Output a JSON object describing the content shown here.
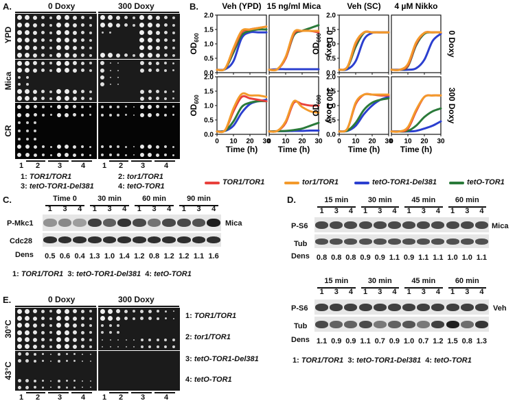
{
  "panelA": {
    "label": "A.",
    "cond0": "0 Doxy",
    "cond300": "300 Doxy",
    "rows": [
      "YPD",
      "Mica",
      "CR"
    ],
    "strain_nums": [
      "1",
      "2",
      "3",
      "4"
    ],
    "legend": [
      {
        "num": "1:",
        "name": "TOR1/TOR1"
      },
      {
        "num": "2:",
        "name": "tor1/TOR1"
      },
      {
        "num": "3:",
        "name": "tetO-TOR1-Del381"
      },
      {
        "num": "4:",
        "name": "tetO-TOR1"
      }
    ]
  },
  "panelB": {
    "label": "B.",
    "titles": [
      "Veh (YPD)",
      "15 ng/ml Mica",
      "Veh (SC)",
      "4 µM Nikko"
    ],
    "row_labels": [
      "0 Doxy",
      "300 Doxy"
    ],
    "ylabel_main": "OD",
    "ylabel_sub": "600",
    "xlabel": "Time (h)",
    "yticks": [
      "0.0",
      "0.5",
      "1.0",
      "1.5",
      "2.0"
    ],
    "xticks": [
      "0",
      "10",
      "20",
      "30"
    ],
    "legend": [
      {
        "name": "TOR1/TOR1",
        "color": "#e8413c"
      },
      {
        "name": "tor1/TOR1",
        "color": "#f39a2b"
      },
      {
        "name": "tetO-TOR1-Del381",
        "color": "#2b3fcf"
      },
      {
        "name": "tetO-TOR1",
        "color": "#2a7a3a"
      }
    ]
  },
  "chart_data": {
    "type": "line",
    "xlabel": "Time (h)",
    "ylabel": "OD600",
    "xlim": [
      0,
      30
    ],
    "ylim": [
      0,
      2.0
    ],
    "panels": [
      {
        "title": "Veh (YPD) / 0 Doxy",
        "series": [
          {
            "name": "TOR1/TOR1",
            "x": [
              0,
              5,
              10,
              15,
              20,
              25,
              30
            ],
            "values": [
              0.1,
              0.15,
              0.8,
              1.4,
              1.5,
              1.55,
              1.6
            ]
          },
          {
            "name": "tor1/TOR1",
            "x": [
              0,
              5,
              10,
              15,
              20,
              25,
              30
            ],
            "values": [
              0.1,
              0.15,
              0.85,
              1.45,
              1.5,
              1.55,
              1.6
            ]
          },
          {
            "name": "tetO-TOR1-Del381",
            "x": [
              0,
              5,
              10,
              15,
              20,
              25,
              30
            ],
            "values": [
              0.1,
              0.12,
              0.4,
              1.2,
              1.4,
              1.4,
              1.4
            ]
          },
          {
            "name": "tetO-TOR1",
            "x": [
              0,
              5,
              10,
              15,
              20,
              25,
              30
            ],
            "values": [
              0.1,
              0.14,
              0.7,
              1.3,
              1.45,
              1.5,
              1.5
            ]
          }
        ]
      },
      {
        "title": "15 ng/ml Mica / 0 Doxy",
        "series": [
          {
            "name": "TOR1/TOR1",
            "x": [
              0,
              5,
              10,
              15,
              20,
              25,
              30
            ],
            "values": [
              0.1,
              0.12,
              0.5,
              1.35,
              1.45,
              1.45,
              1.4
            ]
          },
          {
            "name": "tor1/TOR1",
            "x": [
              0,
              5,
              10,
              15,
              20,
              25,
              30
            ],
            "values": [
              0.1,
              0.12,
              0.55,
              1.4,
              1.45,
              1.45,
              1.45
            ]
          },
          {
            "name": "tetO-TOR1-Del381",
            "x": [
              0,
              5,
              10,
              15,
              20,
              25,
              30
            ],
            "values": [
              0.1,
              0.12,
              0.12,
              0.12,
              0.12,
              0.12,
              0.12
            ]
          },
          {
            "name": "tetO-TOR1",
            "x": [
              0,
              5,
              10,
              15,
              20,
              25,
              30
            ],
            "values": [
              0.1,
              0.12,
              0.5,
              1.3,
              1.45,
              1.55,
              1.65
            ]
          }
        ]
      },
      {
        "title": "Veh (SC) / 0 Doxy",
        "series": [
          {
            "name": "TOR1/TOR1",
            "x": [
              0,
              5,
              10,
              15,
              20,
              25,
              30
            ],
            "values": [
              0.1,
              0.2,
              1.0,
              1.4,
              1.4,
              1.4,
              1.4
            ]
          },
          {
            "name": "tor1/TOR1",
            "x": [
              0,
              5,
              10,
              15,
              20,
              25,
              30
            ],
            "values": [
              0.1,
              0.2,
              1.05,
              1.4,
              1.4,
              1.4,
              1.4
            ]
          },
          {
            "name": "tetO-TOR1-Del381",
            "x": [
              0,
              5,
              10,
              15,
              20,
              25,
              30
            ],
            "values": [
              0.1,
              0.12,
              0.4,
              1.15,
              1.38,
              1.4,
              1.4
            ]
          },
          {
            "name": "tetO-TOR1",
            "x": [
              0,
              5,
              10,
              15,
              20,
              25,
              30
            ],
            "values": [
              0.1,
              0.18,
              0.9,
              1.38,
              1.4,
              1.4,
              1.4
            ]
          }
        ]
      },
      {
        "title": "4 µM Nikko / 0 Doxy",
        "series": [
          {
            "name": "TOR1/TOR1",
            "x": [
              0,
              5,
              10,
              15,
              20,
              25,
              30
            ],
            "values": [
              0.1,
              0.1,
              0.25,
              1.0,
              1.38,
              1.4,
              1.4
            ]
          },
          {
            "name": "tor1/TOR1",
            "x": [
              0,
              5,
              10,
              15,
              20,
              25,
              30
            ],
            "values": [
              0.1,
              0.1,
              0.3,
              1.05,
              1.38,
              1.4,
              1.4
            ]
          },
          {
            "name": "tetO-TOR1-Del381",
            "x": [
              0,
              5,
              10,
              15,
              20,
              25,
              30
            ],
            "values": [
              0.1,
              0.1,
              0.1,
              0.15,
              0.45,
              1.1,
              1.35
            ]
          },
          {
            "name": "tetO-TOR1",
            "x": [
              0,
              5,
              10,
              15,
              20,
              25,
              30
            ],
            "values": [
              0.1,
              0.1,
              0.22,
              0.95,
              1.35,
              1.4,
              1.4
            ]
          }
        ]
      },
      {
        "title": "Veh (YPD) / 300 Doxy",
        "series": [
          {
            "name": "TOR1/TOR1",
            "x": [
              0,
              5,
              10,
              15,
              20,
              25,
              30
            ],
            "values": [
              0.1,
              0.15,
              0.8,
              1.3,
              1.25,
              1.2,
              1.15
            ]
          },
          {
            "name": "tor1/TOR1",
            "x": [
              0,
              5,
              10,
              15,
              20,
              25,
              30
            ],
            "values": [
              0.1,
              0.15,
              0.9,
              1.4,
              1.35,
              1.35,
              1.3
            ]
          },
          {
            "name": "tetO-TOR1-Del381",
            "x": [
              0,
              5,
              10,
              15,
              20,
              25,
              30
            ],
            "values": [
              0.1,
              0.12,
              0.3,
              0.75,
              1.05,
              1.15,
              1.2
            ]
          },
          {
            "name": "tetO-TOR1",
            "x": [
              0,
              5,
              10,
              15,
              20,
              25,
              30
            ],
            "values": [
              0.1,
              0.13,
              0.45,
              0.95,
              1.1,
              1.15,
              1.15
            ]
          }
        ]
      },
      {
        "title": "15 ng/ml Mica / 300 Doxy",
        "series": [
          {
            "name": "TOR1/TOR1",
            "x": [
              0,
              5,
              10,
              15,
              20,
              25,
              30
            ],
            "values": [
              0.1,
              0.12,
              0.4,
              1.1,
              1.05,
              1.0,
              1.0
            ]
          },
          {
            "name": "tor1/TOR1",
            "x": [
              0,
              5,
              10,
              15,
              20,
              25,
              30
            ],
            "values": [
              0.1,
              0.12,
              0.45,
              1.15,
              0.95,
              0.8,
              0.75
            ]
          },
          {
            "name": "tetO-TOR1-Del381",
            "x": [
              0,
              5,
              10,
              15,
              20,
              25,
              30
            ],
            "values": [
              0.1,
              0.11,
              0.11,
              0.12,
              0.12,
              0.13,
              0.13
            ]
          },
          {
            "name": "tetO-TOR1",
            "x": [
              0,
              5,
              10,
              15,
              20,
              25,
              30
            ],
            "values": [
              0.1,
              0.11,
              0.12,
              0.15,
              0.2,
              0.3,
              0.4
            ]
          }
        ]
      },
      {
        "title": "Veh (SC) / 300 Doxy",
        "series": [
          {
            "name": "TOR1/TOR1",
            "x": [
              0,
              5,
              10,
              15,
              20,
              25,
              30
            ],
            "values": [
              0.1,
              0.2,
              1.05,
              1.38,
              1.38,
              1.35,
              1.35
            ]
          },
          {
            "name": "tor1/TOR1",
            "x": [
              0,
              5,
              10,
              15,
              20,
              25,
              30
            ],
            "values": [
              0.1,
              0.2,
              1.1,
              1.38,
              1.38,
              1.38,
              1.38
            ]
          },
          {
            "name": "tetO-TOR1-Del381",
            "x": [
              0,
              5,
              10,
              15,
              20,
              25,
              30
            ],
            "values": [
              0.1,
              0.12,
              0.3,
              0.7,
              1.0,
              1.2,
              1.3
            ]
          },
          {
            "name": "tetO-TOR1",
            "x": [
              0,
              5,
              10,
              15,
              20,
              25,
              30
            ],
            "values": [
              0.1,
              0.13,
              0.4,
              0.85,
              1.1,
              1.2,
              1.25
            ]
          }
        ]
      },
      {
        "title": "4 µM Nikko / 300 Doxy",
        "series": [
          {
            "name": "TOR1/TOR1",
            "x": [
              0,
              5,
              10,
              15,
              20,
              25,
              30
            ],
            "values": [
              0.1,
              0.1,
              0.2,
              0.8,
              1.3,
              1.35,
              1.35
            ]
          },
          {
            "name": "tor1/TOR1",
            "x": [
              0,
              5,
              10,
              15,
              20,
              25,
              30
            ],
            "values": [
              0.1,
              0.1,
              0.25,
              0.85,
              1.3,
              1.35,
              1.35
            ]
          },
          {
            "name": "tetO-TOR1-Del381",
            "x": [
              0,
              5,
              10,
              15,
              20,
              25,
              30
            ],
            "values": [
              0.1,
              0.1,
              0.1,
              0.12,
              0.2,
              0.3,
              0.45
            ]
          },
          {
            "name": "tetO-TOR1",
            "x": [
              0,
              5,
              10,
              15,
              20,
              25,
              30
            ],
            "values": [
              0.1,
              0.1,
              0.12,
              0.3,
              0.6,
              0.8,
              0.9
            ]
          }
        ]
      }
    ]
  },
  "panelC": {
    "label": "C.",
    "times": [
      "Time 0",
      "30 min",
      "60 min",
      "90 min"
    ],
    "lane_nums": [
      "1",
      "3",
      "4",
      "1",
      "3",
      "4",
      "1",
      "3",
      "4",
      "1",
      "3",
      "4"
    ],
    "rows": [
      "P-Mkc1",
      "Cdc28"
    ],
    "side": "Mica",
    "dens_label": "Dens",
    "dens": [
      "0.5",
      "0.6",
      "0.4",
      "1.3",
      "1.0",
      "1.4",
      "1.2",
      "0.8",
      "1.2",
      "1.2",
      "1.1",
      "1.6"
    ],
    "legend": [
      {
        "num": "1:",
        "name": "TOR1/TOR1"
      },
      {
        "num": "3:",
        "name": "tetO-TOR1-Del381"
      },
      {
        "num": "4:",
        "name": "tetO-TOR1"
      }
    ]
  },
  "panelD": {
    "label": "D.",
    "times": [
      "15 min",
      "30 min",
      "45 min",
      "60 min"
    ],
    "lane_nums": [
      "1",
      "3",
      "4",
      "1",
      "3",
      "4",
      "1",
      "3",
      "4",
      "1",
      "3",
      "4"
    ],
    "rows": [
      "P-S6",
      "Tub"
    ],
    "side_top": "Mica",
    "side_bottom": "Veh",
    "dens_label": "Dens",
    "dens_top": [
      "0.8",
      "0.8",
      "0.8",
      "0.9",
      "0.9",
      "1.1",
      "0.9",
      "1.1",
      "1.1",
      "1.0",
      "1.0",
      "1.1"
    ],
    "dens_bottom": [
      "1.1",
      "0.9",
      "0.9",
      "1.1",
      "0.7",
      "0.9",
      "1.0",
      "0.7",
      "1.2",
      "1.5",
      "0.8",
      "1.3"
    ],
    "legend": [
      {
        "num": "1:",
        "name": "TOR1/TOR1"
      },
      {
        "num": "3:",
        "name": "tetO-TOR1-Del381"
      },
      {
        "num": "4:",
        "name": "tetO-TOR1"
      }
    ]
  },
  "panelE": {
    "label": "E.",
    "cond0": "0 Doxy",
    "cond300": "300 Doxy",
    "rows": [
      "30°C",
      "43°C"
    ],
    "strain_nums": [
      "1",
      "2",
      "3",
      "4"
    ],
    "legend": [
      {
        "num": "1:",
        "name": "TOR1/TOR1"
      },
      {
        "num": "2:",
        "name": "tor1/TOR1"
      },
      {
        "num": "3:",
        "name": "tetO-TOR1-Del381"
      },
      {
        "num": "4:",
        "name": "tetO-TOR1"
      }
    ]
  }
}
